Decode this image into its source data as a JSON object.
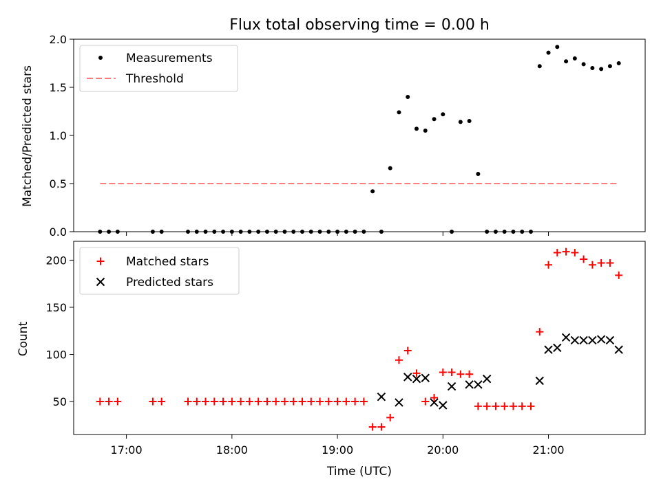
{
  "chart_data": [
    {
      "type": "scatter",
      "title": "Flux total observing time = 0.00 h",
      "xlabel": "",
      "ylabel": "Matched/Predicted stars",
      "ylim": [
        0,
        2.0
      ],
      "yticks": [
        "0.0",
        "0.5",
        "1.0",
        "1.5",
        "2.0"
      ],
      "legend": {
        "placement": "top-left",
        "entries": [
          "Measurements",
          "Threshold"
        ]
      },
      "threshold": {
        "name": "Threshold",
        "value": 0.5,
        "x_range": [
          "16:45",
          "21:40"
        ],
        "color": "#ff7f7f"
      },
      "series": [
        {
          "name": "Measurements",
          "color": "#000000",
          "x": [
            "16:45",
            "16:50",
            "16:55",
            "17:15",
            "17:20",
            "17:35",
            "17:40",
            "17:45",
            "17:50",
            "17:55",
            "18:00",
            "18:05",
            "18:10",
            "18:15",
            "18:20",
            "18:25",
            "18:30",
            "18:35",
            "18:40",
            "18:45",
            "18:50",
            "18:55",
            "19:00",
            "19:05",
            "19:10",
            "19:15",
            "19:20",
            "19:25",
            "19:30",
            "19:35",
            "19:40",
            "19:45",
            "19:50",
            "19:55",
            "20:00",
            "20:05",
            "20:10",
            "20:15",
            "20:20",
            "20:25",
            "20:30",
            "20:35",
            "20:40",
            "20:45",
            "20:50",
            "20:55",
            "21:00",
            "21:05",
            "21:10",
            "21:15",
            "21:20",
            "21:25",
            "21:30",
            "21:35",
            "21:40"
          ],
          "y": [
            0,
            0,
            0,
            0,
            0,
            0,
            0,
            0,
            0,
            0,
            0,
            0,
            0,
            0,
            0,
            0,
            0,
            0,
            0,
            0,
            0,
            0,
            0,
            0,
            0,
            0,
            0.42,
            0,
            0.66,
            1.24,
            1.4,
            1.07,
            1.05,
            1.17,
            1.22,
            0,
            1.14,
            1.15,
            0.6,
            0,
            0,
            0,
            0,
            0,
            0,
            1.72,
            1.86,
            1.92,
            1.77,
            1.8,
            1.74,
            1.7,
            1.69,
            1.72,
            1.75
          ]
        }
      ]
    },
    {
      "type": "scatter",
      "title": "",
      "xlabel": "Time (UTC)",
      "ylabel": "Count",
      "ylim": [
        15,
        220
      ],
      "yticks": [
        "50",
        "100",
        "150",
        "200"
      ],
      "xlim": [
        "16:30",
        "21:55"
      ],
      "xticks": [
        "17:00",
        "18:00",
        "19:00",
        "20:00",
        "21:00"
      ],
      "legend": {
        "placement": "top-left",
        "entries": [
          "Matched stars",
          "Predicted stars"
        ]
      },
      "series": [
        {
          "name": "Matched stars",
          "marker": "+",
          "color": "#ff0000",
          "x": [
            "16:45",
            "16:50",
            "16:55",
            "17:15",
            "17:20",
            "17:35",
            "17:40",
            "17:45",
            "17:50",
            "17:55",
            "18:00",
            "18:05",
            "18:10",
            "18:15",
            "18:20",
            "18:25",
            "18:30",
            "18:35",
            "18:40",
            "18:45",
            "18:50",
            "18:55",
            "19:00",
            "19:05",
            "19:10",
            "19:15",
            "19:20",
            "19:25",
            "19:30",
            "19:35",
            "19:40",
            "19:45",
            "19:50",
            "19:55",
            "20:00",
            "20:05",
            "20:10",
            "20:15",
            "20:20",
            "20:25",
            "20:30",
            "20:35",
            "20:40",
            "20:45",
            "20:50",
            "20:55",
            "21:00",
            "21:05",
            "21:10",
            "21:15",
            "21:20",
            "21:25",
            "21:30",
            "21:35",
            "21:40"
          ],
          "y": [
            50,
            50,
            50,
            50,
            50,
            50,
            50,
            50,
            50,
            50,
            50,
            50,
            50,
            50,
            50,
            50,
            50,
            50,
            50,
            50,
            50,
            50,
            50,
            50,
            50,
            50,
            23,
            23,
            33,
            94,
            104,
            80,
            50,
            54,
            81,
            81,
            79,
            79,
            45,
            45,
            45,
            45,
            45,
            45,
            45,
            124,
            195,
            208,
            209,
            208,
            201,
            195,
            197,
            197,
            184
          ]
        },
        {
          "name": "Predicted stars",
          "marker": "x",
          "color": "#000000",
          "x": [
            "19:25",
            "19:35",
            "19:40",
            "19:45",
            "19:50",
            "19:55",
            "20:00",
            "20:05",
            "20:15",
            "20:20",
            "20:25",
            "20:55",
            "21:00",
            "21:05",
            "21:10",
            "21:15",
            "21:20",
            "21:25",
            "21:30",
            "21:35",
            "21:40"
          ],
          "y": [
            55,
            49,
            76,
            74,
            75,
            49,
            46,
            66,
            68,
            68,
            74,
            72,
            105,
            107,
            118,
            115,
            115,
            115,
            116,
            115,
            105
          ]
        }
      ]
    }
  ]
}
